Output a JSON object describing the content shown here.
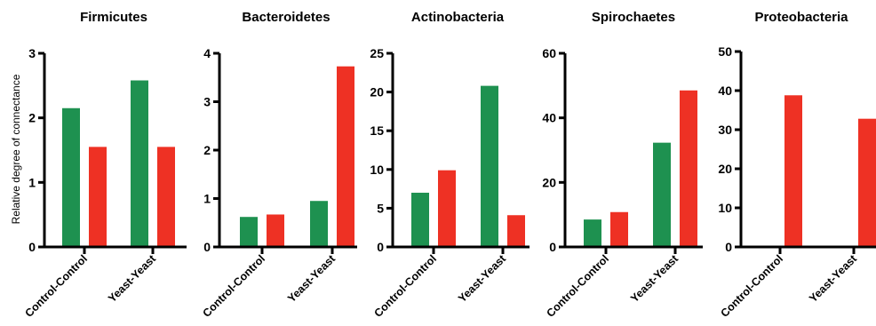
{
  "colors": {
    "control": "#1e9150",
    "yeast": "#ee3124",
    "axis": "#000000"
  },
  "ylabel": "Relative degree of connectance",
  "chart_data": [
    {
      "type": "bar",
      "title": "Firmicutes",
      "categories": [
        "Control-Control",
        "Yeast-Yeast"
      ],
      "series": [
        {
          "values": [
            2.15,
            2.58
          ]
        },
        {
          "values": [
            1.55,
            1.55
          ]
        }
      ],
      "ylim": [
        0,
        3
      ],
      "yticks": [
        0,
        1,
        2,
        3
      ]
    },
    {
      "type": "bar",
      "title": "Bacteroidetes",
      "categories": [
        "Control-Control",
        "Yeast-Yeast"
      ],
      "series": [
        {
          "values": [
            0.62,
            0.95
          ]
        },
        {
          "values": [
            0.67,
            3.73
          ]
        }
      ],
      "ylim": [
        0,
        4
      ],
      "yticks": [
        0,
        1,
        2,
        3,
        4
      ]
    },
    {
      "type": "bar",
      "title": "Actinobacteria",
      "categories": [
        "Control-Control",
        "Yeast-Yeast"
      ],
      "series": [
        {
          "values": [
            7.0,
            20.8
          ]
        },
        {
          "values": [
            9.9,
            4.1
          ]
        }
      ],
      "ylim": [
        0,
        25
      ],
      "yticks": [
        0,
        5,
        10,
        15,
        20,
        25
      ]
    },
    {
      "type": "bar",
      "title": "Spirochaetes",
      "categories": [
        "Control-Control",
        "Yeast-Yeast"
      ],
      "series": [
        {
          "values": [
            8.5,
            32.3
          ]
        },
        {
          "values": [
            10.8,
            48.5
          ]
        }
      ],
      "ylim": [
        0,
        60
      ],
      "yticks": [
        0,
        20,
        40,
        60
      ]
    },
    {
      "type": "bar",
      "title": "Proteobacteria",
      "categories": [
        "Control-Control",
        "Yeast-Yeast"
      ],
      "series": [
        {
          "values": [
            0,
            0
          ]
        },
        {
          "values": [
            38.8,
            32.8
          ]
        }
      ],
      "ylim": [
        0,
        50
      ],
      "yticks": [
        0,
        10,
        20,
        30,
        40,
        50
      ]
    }
  ]
}
